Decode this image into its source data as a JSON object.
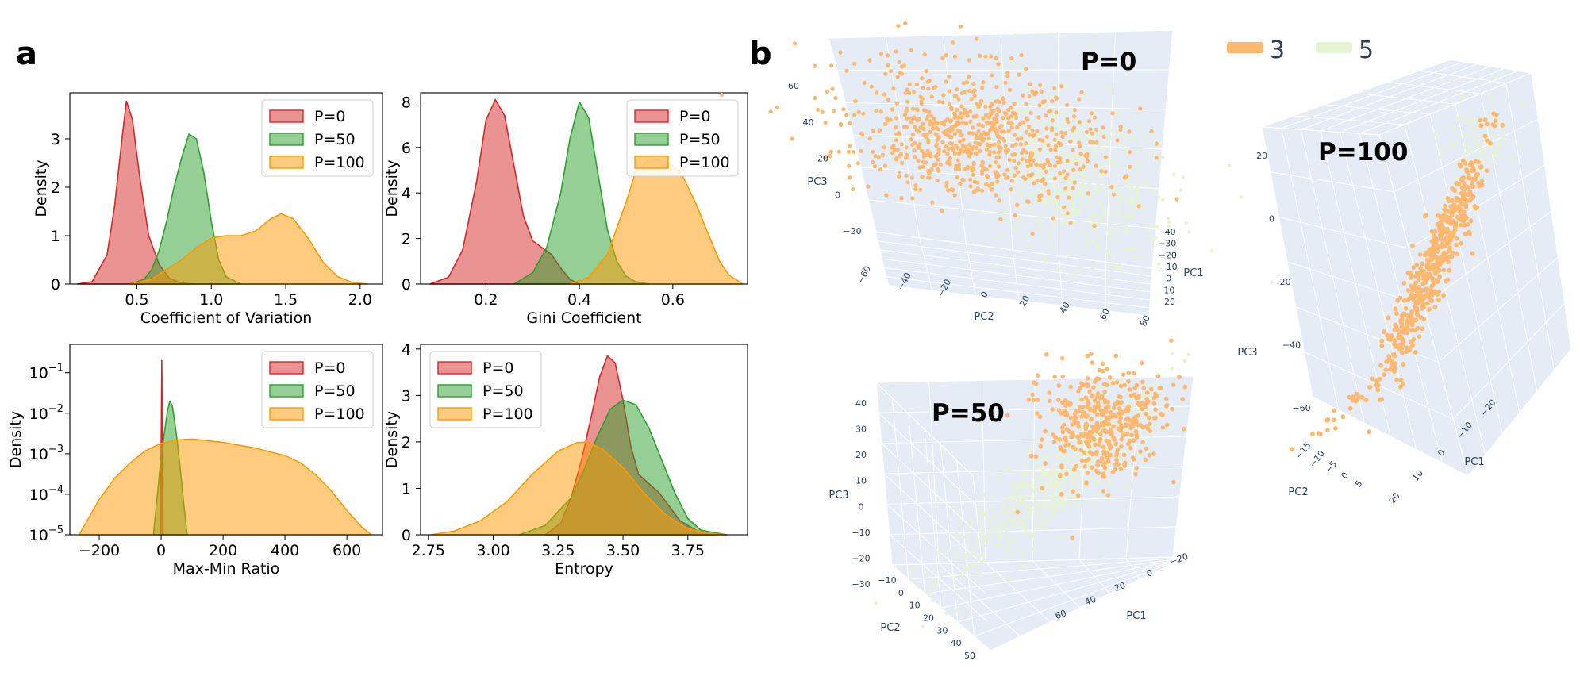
{
  "figure": {
    "panel_a": "a",
    "panel_b": "b"
  },
  "colors": {
    "p0": "#d62728",
    "p50": "#2ca02c",
    "p100": "#ff9900",
    "cluster3": "#ffb870",
    "cluster5": "#e7f3d4",
    "plot3d_bg": "#e5ecf6",
    "plot3d_text": "#2a3f5f"
  },
  "chart_data": [
    {
      "id": "cv",
      "type": "area",
      "title": "",
      "xlabel": "Coefficient of Variation",
      "ylabel": "Density",
      "xlim": [
        0.05,
        2.15
      ],
      "ylim": [
        0,
        3.95
      ],
      "yscale": "linear",
      "xticks": [
        0.5,
        1.0,
        1.5,
        2.0
      ],
      "xtick_labels": [
        "0.5",
        "1.0",
        "1.5",
        "2.0"
      ],
      "yticks": [
        0,
        1,
        2,
        3
      ],
      "ytick_labels": [
        "0",
        "1",
        "2",
        "3"
      ],
      "legend": [
        "P=0",
        "P=50",
        "P=100"
      ],
      "legend_position": "top-right",
      "series": [
        {
          "name": "P=0",
          "color_key": "p0",
          "x": [
            0.1,
            0.2,
            0.3,
            0.35,
            0.4,
            0.43,
            0.47,
            0.52,
            0.58,
            0.65,
            0.72,
            0.8,
            0.9
          ],
          "y": [
            0,
            0.05,
            0.6,
            1.6,
            3.0,
            3.78,
            3.4,
            2.2,
            1.0,
            0.4,
            0.12,
            0.02,
            0
          ]
        },
        {
          "name": "P=50",
          "color_key": "p50",
          "x": [
            0.45,
            0.55,
            0.6,
            0.65,
            0.7,
            0.75,
            0.8,
            0.85,
            0.9,
            0.95,
            1.0,
            1.05,
            1.1,
            1.2
          ],
          "y": [
            0,
            0.1,
            0.3,
            0.7,
            1.3,
            2.0,
            2.6,
            3.1,
            3.0,
            2.3,
            1.3,
            0.5,
            0.15,
            0
          ]
        },
        {
          "name": "P=100",
          "color_key": "p100",
          "x": [
            0.45,
            0.6,
            0.7,
            0.8,
            0.9,
            1.0,
            1.1,
            1.2,
            1.3,
            1.4,
            1.47,
            1.55,
            1.65,
            1.75,
            1.85,
            1.95,
            2.05
          ],
          "y": [
            0,
            0.1,
            0.3,
            0.5,
            0.75,
            0.95,
            1.0,
            1.0,
            1.1,
            1.35,
            1.45,
            1.35,
            0.95,
            0.45,
            0.15,
            0.03,
            0
          ]
        }
      ]
    },
    {
      "id": "gini",
      "type": "area",
      "title": "",
      "xlabel": "Gini Coefficient",
      "ylabel": "Density",
      "xlim": [
        0.06,
        0.76
      ],
      "ylim": [
        0,
        8.4
      ],
      "yscale": "linear",
      "xticks": [
        0.2,
        0.4,
        0.6
      ],
      "xtick_labels": [
        "0.2",
        "0.4",
        "0.6"
      ],
      "yticks": [
        0,
        2,
        4,
        6,
        8
      ],
      "ytick_labels": [
        "0",
        "2",
        "4",
        "6",
        "8"
      ],
      "legend": [
        "P=0",
        "P=50",
        "P=100"
      ],
      "legend_position": "top-right",
      "series": [
        {
          "name": "P=0",
          "color_key": "p0",
          "x": [
            0.08,
            0.12,
            0.15,
            0.18,
            0.2,
            0.22,
            0.24,
            0.26,
            0.28,
            0.3,
            0.32,
            0.34,
            0.36,
            0.38,
            0.4
          ],
          "y": [
            0,
            0.3,
            1.5,
            4.5,
            7.2,
            8.1,
            7.4,
            5.2,
            3.0,
            1.9,
            1.6,
            1.3,
            0.7,
            0.2,
            0
          ]
        },
        {
          "name": "P=50",
          "color_key": "p50",
          "x": [
            0.26,
            0.3,
            0.33,
            0.36,
            0.38,
            0.4,
            0.42,
            0.44,
            0.46,
            0.48,
            0.5,
            0.52,
            0.55
          ],
          "y": [
            0,
            0.5,
            1.6,
            4.0,
            6.4,
            8.0,
            7.3,
            4.8,
            2.4,
            1.0,
            0.35,
            0.1,
            0
          ]
        },
        {
          "name": "P=100",
          "color_key": "p100",
          "x": [
            0.38,
            0.42,
            0.46,
            0.5,
            0.52,
            0.55,
            0.58,
            0.6,
            0.62,
            0.65,
            0.68,
            0.7,
            0.72,
            0.75
          ],
          "y": [
            0,
            0.3,
            1.3,
            3.6,
            4.9,
            5.5,
            5.4,
            5.2,
            4.8,
            3.5,
            2.0,
            1.0,
            0.4,
            0
          ]
        }
      ]
    },
    {
      "id": "maxmin",
      "type": "area",
      "title": "",
      "xlabel": "Max-Min Ratio",
      "ylabel": "Density",
      "xlim": [
        -295,
        715
      ],
      "ylim": [
        1e-05,
        0.5
      ],
      "yscale": "log",
      "xticks": [
        -200,
        0,
        200,
        400,
        600
      ],
      "xtick_labels": [
        "−200",
        "0",
        "200",
        "400",
        "600"
      ],
      "yticks": [
        1e-05,
        0.0001,
        0.001,
        0.01,
        0.1
      ],
      "ytick_labels": [
        "10",
        "10",
        "10",
        "10",
        "10"
      ],
      "ytick_exponents": [
        "−5",
        "−4",
        "−3",
        "−2",
        "−1"
      ],
      "legend": [
        "P=0",
        "P=50",
        "P=100"
      ],
      "legend_position": "top-right",
      "series": [
        {
          "name": "P=0",
          "color_key": "p0",
          "x": [
            -2,
            0,
            2,
            4,
            6
          ],
          "y": [
            1e-05,
            0.002,
            0.2,
            0.003,
            1e-05
          ]
        },
        {
          "name": "P=50",
          "color_key": "p50",
          "x": [
            -25,
            -12,
            0,
            12,
            20,
            28,
            36,
            44,
            52,
            62,
            74,
            84
          ],
          "y": [
            1e-05,
            0.0001,
            0.0009,
            0.004,
            0.011,
            0.02,
            0.015,
            0.006,
            0.002,
            0.0004,
            5e-05,
            1e-05
          ]
        },
        {
          "name": "P=100",
          "color_key": "p100",
          "x": [
            -265,
            -200,
            -150,
            -100,
            -50,
            0,
            50,
            100,
            150,
            200,
            300,
            400,
            450,
            500,
            550,
            600,
            650,
            680
          ],
          "y": [
            1e-05,
            7.5e-05,
            0.00025,
            0.0006,
            0.0012,
            0.0018,
            0.0022,
            0.0023,
            0.0021,
            0.0019,
            0.0014,
            0.0009,
            0.0006,
            0.0003,
            0.00012,
            4e-05,
            1.5e-05,
            1e-05
          ]
        }
      ]
    },
    {
      "id": "entropy",
      "type": "area",
      "title": "",
      "xlabel": "Entropy",
      "ylabel": "Density",
      "xlim": [
        2.72,
        3.98
      ],
      "ylim": [
        0,
        4.1
      ],
      "yscale": "linear",
      "xticks": [
        2.75,
        3.0,
        3.25,
        3.5,
        3.75
      ],
      "xtick_labels": [
        "2.75",
        "3.00",
        "3.25",
        "3.50",
        "3.75"
      ],
      "yticks": [
        0,
        1,
        2,
        3,
        4
      ],
      "ytick_labels": [
        "0",
        "1",
        "2",
        "3",
        "4"
      ],
      "legend": [
        "P=0",
        "P=50",
        "P=100"
      ],
      "legend_position": "top-left",
      "series": [
        {
          "name": "P=0",
          "color_key": "p0",
          "x": [
            3.2,
            3.26,
            3.3,
            3.34,
            3.38,
            3.41,
            3.44,
            3.47,
            3.5,
            3.53,
            3.56,
            3.6,
            3.64,
            3.68,
            3.72,
            3.78,
            3.85
          ],
          "y": [
            0,
            0.25,
            0.8,
            1.6,
            2.6,
            3.4,
            3.85,
            3.7,
            2.9,
            1.9,
            1.3,
            1.1,
            0.9,
            0.6,
            0.3,
            0.1,
            0
          ]
        },
        {
          "name": "P=50",
          "color_key": "p50",
          "x": [
            3.1,
            3.2,
            3.3,
            3.35,
            3.4,
            3.45,
            3.5,
            3.55,
            3.6,
            3.65,
            3.7,
            3.75,
            3.8,
            3.9
          ],
          "y": [
            0,
            0.2,
            0.8,
            1.4,
            2.1,
            2.7,
            2.9,
            2.8,
            2.3,
            1.6,
            0.9,
            0.35,
            0.1,
            0
          ]
        },
        {
          "name": "P=100",
          "color_key": "p100",
          "x": [
            2.76,
            2.85,
            2.95,
            3.05,
            3.15,
            3.25,
            3.32,
            3.36,
            3.42,
            3.5,
            3.58,
            3.66,
            3.74,
            3.82,
            3.9
          ],
          "y": [
            0,
            0.08,
            0.3,
            0.7,
            1.3,
            1.8,
            1.98,
            2.0,
            1.85,
            1.45,
            0.9,
            0.45,
            0.15,
            0.04,
            0
          ]
        }
      ]
    },
    {
      "id": "pca_p0",
      "type": "scatter",
      "title": "P=0",
      "axis_labels": {
        "x": "PC2",
        "y": "PC3",
        "z": "PC1"
      },
      "x_ticks": [
        "−60",
        "−40",
        "−20",
        "0",
        "20",
        "40",
        "60",
        "80"
      ],
      "y_ticks": [
        "−20",
        "0",
        "20",
        "40",
        "60"
      ],
      "z_ticks": [
        "−40",
        "−30",
        "−20",
        "−10",
        "0",
        "10",
        "20"
      ],
      "series": [
        {
          "name": "3",
          "color_key": "cluster3",
          "n_points": 750
        },
        {
          "name": "5",
          "color_key": "cluster5",
          "n_points": 500
        }
      ]
    },
    {
      "id": "pca_p50",
      "type": "scatter",
      "title": "P=50",
      "axis_labels": {
        "x": "PC2",
        "y": "PC3",
        "z": "PC1"
      },
      "x_ticks": [
        "−10",
        "0",
        "10",
        "20",
        "30",
        "40",
        "50"
      ],
      "y_ticks": [
        "−30",
        "−20",
        "−10",
        "0",
        "10",
        "20",
        "30",
        "40"
      ],
      "z_ticks": [
        "60",
        "40",
        "20",
        "0",
        "−20"
      ],
      "series": [
        {
          "name": "3",
          "color_key": "cluster3",
          "n_points": 400
        },
        {
          "name": "5",
          "color_key": "cluster5",
          "n_points": 500
        }
      ]
    },
    {
      "id": "pca_p100",
      "type": "scatter",
      "title": "P=100",
      "axis_labels": {
        "x": "PC2",
        "y": "PC3",
        "z": "PC1"
      },
      "x_ticks": [
        "−15",
        "−10",
        "−5",
        "0",
        "5"
      ],
      "y_ticks": [
        "−60",
        "−40",
        "−20",
        "0",
        "20"
      ],
      "z_ticks": [
        "−20",
        "−10",
        "0",
        "10",
        "20"
      ],
      "series": [
        {
          "name": "3",
          "color_key": "cluster3",
          "n_points": 500
        },
        {
          "name": "5",
          "color_key": "cluster5",
          "n_points": 80
        }
      ]
    }
  ],
  "pca_legend": {
    "items": [
      {
        "label": "3",
        "color_key": "cluster3"
      },
      {
        "label": "5",
        "color_key": "cluster5"
      }
    ]
  }
}
